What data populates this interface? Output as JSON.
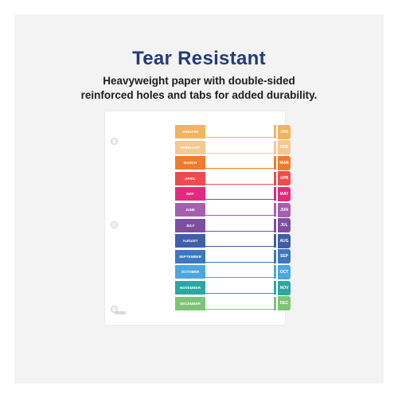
{
  "heading": "Tear Resistant",
  "subline1": "Heavyweight paper with double-sided",
  "subline2": "reinforced holes and tabs for added durability.",
  "colors": {
    "heading": "#243a7a",
    "months": [
      "#f2b45a",
      "#f5c791",
      "#f07a2d",
      "#ef4b4f",
      "#e32b7d",
      "#a45fae",
      "#7d4fa1",
      "#3f5ea6",
      "#3c78bd",
      "#4ba7dd",
      "#2aa7a0",
      "#7cc576"
    ]
  },
  "months": [
    {
      "label": "JANUARY",
      "tab": "JAN"
    },
    {
      "label": "FEBRUARY",
      "tab": "FEB"
    },
    {
      "label": "MARCH",
      "tab": "MAR"
    },
    {
      "label": "APRIL",
      "tab": "APR"
    },
    {
      "label": "MAY",
      "tab": "MAY"
    },
    {
      "label": "JUNE",
      "tab": "JUN"
    },
    {
      "label": "JULY",
      "tab": "JUL"
    },
    {
      "label": "AUGUST",
      "tab": "AUG"
    },
    {
      "label": "SEPTEMBER",
      "tab": "SEP"
    },
    {
      "label": "OCTOBER",
      "tab": "OCT"
    },
    {
      "label": "NOVEMBER",
      "tab": "NOV"
    },
    {
      "label": "DECEMBER",
      "tab": "DEC"
    }
  ]
}
